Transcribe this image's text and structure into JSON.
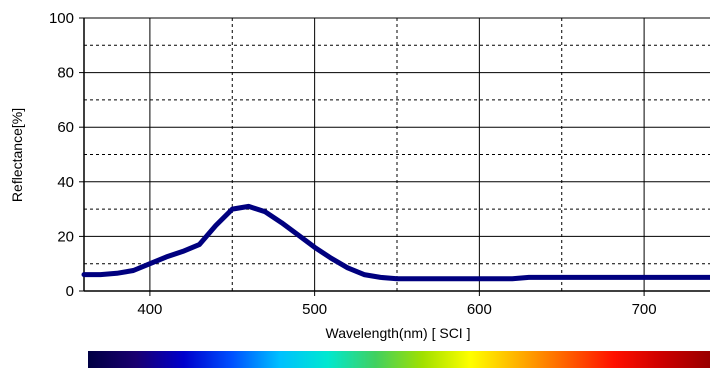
{
  "chart_data": {
    "type": "line",
    "title": "",
    "xlabel": "Wavelength(nm) [ SCI ]",
    "ylabel": "Reflectance[%]",
    "xlim": [
      360,
      740
    ],
    "ylim": [
      0,
      100
    ],
    "x_ticks": [
      400,
      500,
      600,
      700
    ],
    "y_ticks": [
      0,
      20,
      40,
      60,
      80,
      100
    ],
    "grid": true,
    "legend": "none",
    "series": [
      {
        "color": "#00007f",
        "x": [
          360,
          370,
          380,
          390,
          400,
          410,
          420,
          430,
          440,
          450,
          460,
          470,
          480,
          490,
          500,
          510,
          520,
          530,
          540,
          550,
          560,
          570,
          580,
          590,
          600,
          610,
          620,
          630,
          640,
          650,
          660,
          670,
          680,
          690,
          700,
          710,
          720,
          730,
          740
        ],
        "y": [
          6,
          6,
          6.5,
          7.5,
          10,
          12.5,
          14.5,
          17,
          24,
          30,
          31,
          29,
          25,
          20.5,
          16,
          12,
          8.5,
          6,
          5,
          4.5,
          4.5,
          4.5,
          4.5,
          4.5,
          4.5,
          4.5,
          4.5,
          5,
          5,
          5,
          5,
          5,
          5,
          5,
          5,
          5,
          5,
          5,
          5
        ]
      }
    ],
    "spectrum_bar": {
      "colors": [
        "#000044",
        "#1a0070",
        "#0000cc",
        "#0050ff",
        "#00c0ff",
        "#00e8d0",
        "#40d060",
        "#a0e000",
        "#ffff00",
        "#ffb000",
        "#ff6000",
        "#ff1000",
        "#cc0000",
        "#990000"
      ]
    }
  }
}
